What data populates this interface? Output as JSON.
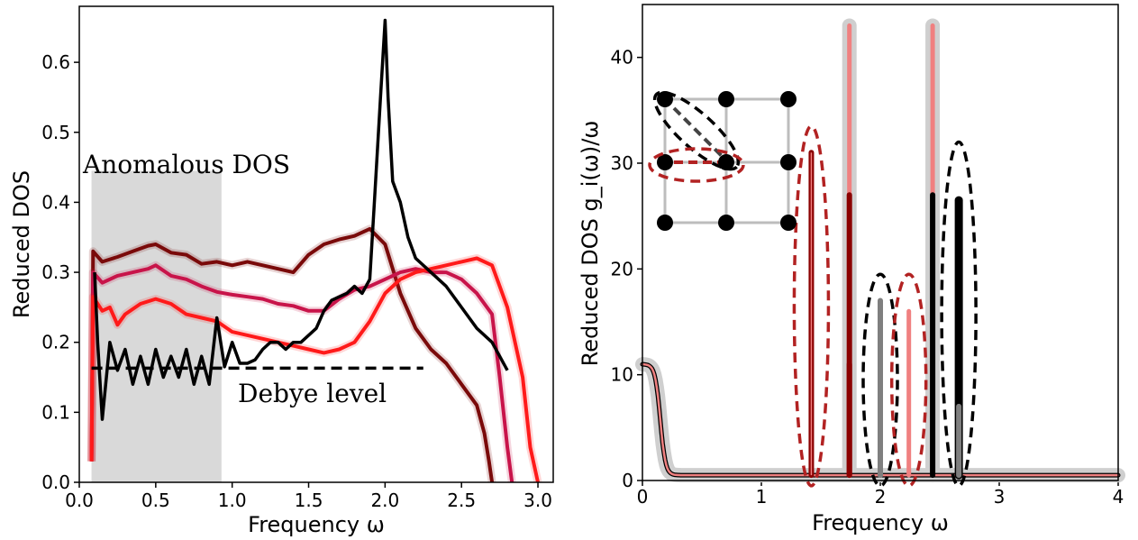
{
  "chart_data": [
    {
      "type": "line",
      "xlabel": "Frequency ω",
      "ylabel": "Reduced DOS",
      "xlim": [
        0.0,
        3.1
      ],
      "ylim": [
        0.0,
        0.68
      ],
      "xticks": [
        "0.0",
        "0.5",
        "1.0",
        "1.5",
        "2.0",
        "2.5",
        "3.0"
      ],
      "yticks": [
        "0.0",
        "0.1",
        "0.2",
        "0.3",
        "0.4",
        "0.5",
        "0.6"
      ],
      "annotations": {
        "shaded_region_label": "Anomalous DOS",
        "reference_line_label": "Debye level"
      },
      "shaded_region": {
        "x": [
          0.08,
          0.93
        ],
        "y": [
          0.0,
          0.445
        ]
      },
      "debye_level": {
        "value": 0.163,
        "x": [
          0.08,
          2.25
        ]
      },
      "colors": {
        "dark_red": "#7a0a0a",
        "crimson": "#c8144a",
        "red": "#ff1a1a",
        "black": "#000000",
        "shade": "#d9d9d9"
      },
      "series": [
        {
          "color": "dark_red",
          "x": [
            0.08,
            0.09,
            0.15,
            0.25,
            0.35,
            0.45,
            0.5,
            0.6,
            0.7,
            0.8,
            0.9,
            1.0,
            1.1,
            1.2,
            1.3,
            1.4,
            1.5,
            1.6,
            1.7,
            1.8,
            1.9,
            2.0,
            2.1,
            2.2,
            2.3,
            2.4,
            2.5,
            2.6,
            2.65,
            2.68,
            2.7
          ],
          "y": [
            0.03,
            0.33,
            0.315,
            0.322,
            0.33,
            0.338,
            0.34,
            0.328,
            0.325,
            0.312,
            0.315,
            0.31,
            0.315,
            0.31,
            0.305,
            0.3,
            0.325,
            0.34,
            0.347,
            0.352,
            0.362,
            0.34,
            0.27,
            0.22,
            0.19,
            0.17,
            0.14,
            0.11,
            0.07,
            0.03,
            0.0
          ]
        },
        {
          "color": "crimson",
          "x": [
            0.08,
            0.09,
            0.15,
            0.25,
            0.35,
            0.45,
            0.5,
            0.6,
            0.7,
            0.8,
            0.9,
            1.0,
            1.1,
            1.2,
            1.3,
            1.4,
            1.5,
            1.6,
            1.7,
            1.8,
            1.9,
            2.0,
            2.1,
            2.2,
            2.3,
            2.4,
            2.5,
            2.6,
            2.7,
            2.75,
            2.8,
            2.83
          ],
          "y": [
            0.03,
            0.3,
            0.285,
            0.295,
            0.3,
            0.305,
            0.31,
            0.295,
            0.29,
            0.28,
            0.272,
            0.268,
            0.265,
            0.262,
            0.255,
            0.252,
            0.245,
            0.245,
            0.262,
            0.275,
            0.28,
            0.29,
            0.3,
            0.305,
            0.3,
            0.3,
            0.29,
            0.27,
            0.24,
            0.15,
            0.05,
            0.0
          ]
        },
        {
          "color": "red",
          "x": [
            0.08,
            0.09,
            0.15,
            0.2,
            0.25,
            0.3,
            0.4,
            0.5,
            0.6,
            0.7,
            0.8,
            0.9,
            1.0,
            1.1,
            1.2,
            1.3,
            1.4,
            1.5,
            1.6,
            1.7,
            1.8,
            1.9,
            2.0,
            2.1,
            2.2,
            2.3,
            2.4,
            2.5,
            2.6,
            2.7,
            2.75,
            2.8,
            2.9,
            2.95,
            3.0
          ],
          "y": [
            0.03,
            0.265,
            0.245,
            0.25,
            0.225,
            0.24,
            0.255,
            0.262,
            0.255,
            0.24,
            0.235,
            0.23,
            0.215,
            0.21,
            0.205,
            0.2,
            0.195,
            0.19,
            0.185,
            0.19,
            0.2,
            0.23,
            0.27,
            0.29,
            0.3,
            0.305,
            0.31,
            0.315,
            0.32,
            0.31,
            0.28,
            0.25,
            0.15,
            0.05,
            0.0
          ]
        },
        {
          "color": "black",
          "x": [
            0.1,
            0.12,
            0.15,
            0.2,
            0.25,
            0.3,
            0.35,
            0.4,
            0.45,
            0.5,
            0.55,
            0.6,
            0.65,
            0.7,
            0.75,
            0.8,
            0.85,
            0.9,
            0.95,
            1.0,
            1.05,
            1.1,
            1.15,
            1.2,
            1.25,
            1.3,
            1.35,
            1.4,
            1.45,
            1.5,
            1.55,
            1.6,
            1.65,
            1.7,
            1.75,
            1.8,
            1.85,
            1.9,
            1.93,
            1.97,
            2.0,
            2.02,
            2.05,
            2.1,
            2.15,
            2.2,
            2.3,
            2.4,
            2.5,
            2.6,
            2.7,
            2.75,
            2.8
          ],
          "y": [
            0.3,
            0.2,
            0.09,
            0.2,
            0.16,
            0.19,
            0.14,
            0.18,
            0.14,
            0.19,
            0.15,
            0.18,
            0.15,
            0.19,
            0.14,
            0.18,
            0.14,
            0.235,
            0.165,
            0.2,
            0.17,
            0.17,
            0.175,
            0.19,
            0.2,
            0.2,
            0.19,
            0.2,
            0.2,
            0.21,
            0.22,
            0.245,
            0.26,
            0.265,
            0.27,
            0.28,
            0.27,
            0.29,
            0.4,
            0.55,
            0.66,
            0.55,
            0.43,
            0.4,
            0.35,
            0.32,
            0.3,
            0.28,
            0.25,
            0.22,
            0.2,
            0.18,
            0.16
          ]
        }
      ]
    },
    {
      "type": "line",
      "xlabel": "Frequency ω",
      "ylabel": "Reduced DOS g_i(ω)/ω",
      "xlim": [
        0.0,
        4.0
      ],
      "ylim": [
        0.0,
        45.0
      ],
      "xticks": [
        "0",
        "1",
        "2",
        "3",
        "4"
      ],
      "yticks": [
        "0",
        "10",
        "20",
        "30",
        "40"
      ],
      "colors": {
        "grey_band": "#cfcfcf",
        "salmon": "#f08080",
        "dark_red": "#8b0000",
        "black": "#000000",
        "grey_bar": "#7f7f7f",
        "dashed_red": "#b22222"
      },
      "baseline": {
        "low_freq_peak": 11.0,
        "plateau": 0.5
      },
      "peaks": [
        {
          "x": 1.42,
          "height": 31.0,
          "color": "dark_red"
        },
        {
          "x": 1.74,
          "height": 43.0,
          "color": "salmon"
        },
        {
          "x": 1.74,
          "height": 27.0,
          "color": "dark_red"
        },
        {
          "x": 1.74,
          "height": 11.0,
          "color": "dark_red"
        },
        {
          "x": 2.0,
          "height": 17.0,
          "color": "grey_bar"
        },
        {
          "x": 2.24,
          "height": 16.0,
          "color": "salmon"
        },
        {
          "x": 2.44,
          "height": 43.0,
          "color": "salmon"
        },
        {
          "x": 2.44,
          "height": 27.0,
          "color": "black"
        },
        {
          "x": 2.66,
          "height": 26.5,
          "color": "black"
        },
        {
          "x": 2.66,
          "height": 7.0,
          "color": "grey_bar"
        }
      ],
      "dashed_ellipses": [
        {
          "x": 1.42,
          "top": 33.5,
          "color": "dashed_red"
        },
        {
          "x": 2.0,
          "top": 19.5,
          "color": "black"
        },
        {
          "x": 2.24,
          "top": 19.5,
          "color": "dashed_red"
        },
        {
          "x": 2.66,
          "top": 32.0,
          "color": "black"
        }
      ]
    }
  ]
}
